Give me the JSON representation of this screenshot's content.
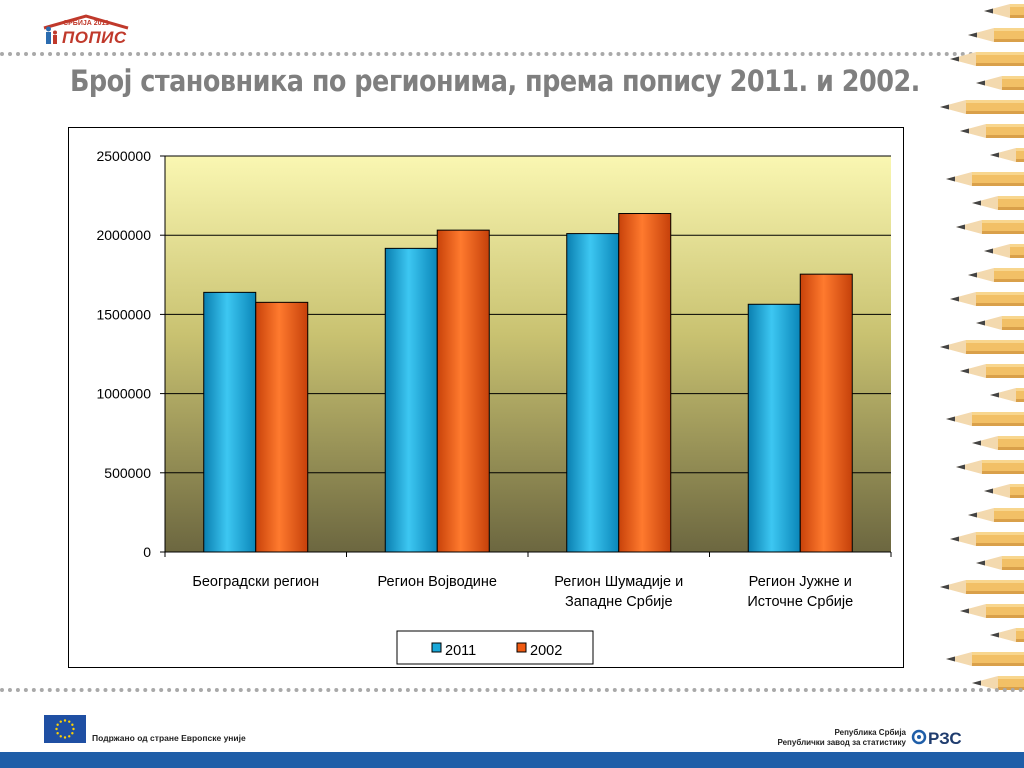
{
  "logo": {
    "year_text": "СРБИЈА 2011",
    "word": "ПОПИС"
  },
  "title": "Број становника по регионима, према попису 2011. и 2002.",
  "chart_data": {
    "type": "bar",
    "categories": [
      [
        "Београдски регион"
      ],
      [
        "Регион Војводине"
      ],
      [
        "Регион Шумадије и",
        "Западне Србије"
      ],
      [
        "Регион Јужне и",
        "Источне Србије"
      ]
    ],
    "series": [
      {
        "name": "2011",
        "values": [
          1639121,
          1916889,
          2010128,
          1563916
        ],
        "color": "#19a8d9"
      },
      {
        "name": "2002",
        "values": [
          1576124,
          2031992,
          2136881,
          1754061
        ],
        "color": "#f05a12"
      }
    ],
    "yticks": [
      0,
      500000,
      1000000,
      1500000,
      2000000,
      2500000
    ],
    "ylim": [
      0,
      2500000
    ],
    "grid": true,
    "legend": "bottom",
    "plot_background": "yellow-to-olive gradient"
  },
  "footer": {
    "eu_text": "Подржано од стране Европске уније",
    "rzs_line1": "Република Србија",
    "rzs_line2": "Републички  завод за статистику",
    "bar_color": "#1f5ea8"
  }
}
